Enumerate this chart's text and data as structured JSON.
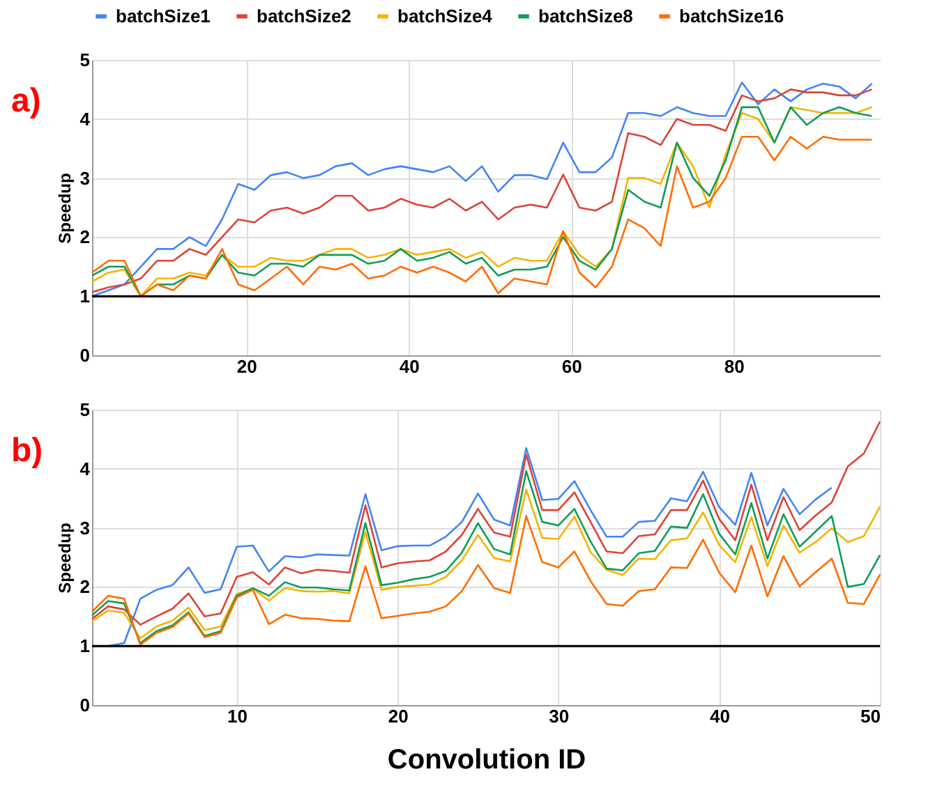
{
  "chart_data": [
    {
      "type": "line",
      "ylabel": "Speedup",
      "annotations": [
        "a)"
      ],
      "legend": "top",
      "grid": true,
      "line_style": "solid",
      "xlim": [
        1,
        98
      ],
      "xticks": [
        20,
        40,
        60,
        80
      ],
      "ylim": [
        0,
        5
      ],
      "yticks": [
        0,
        1,
        2,
        3,
        4,
        5
      ],
      "ref_lines": [
        {
          "axis": "y",
          "value": 1,
          "color": "#000000"
        }
      ],
      "x": [
        1,
        3,
        5,
        7,
        9,
        11,
        13,
        15,
        17,
        19,
        21,
        23,
        25,
        27,
        29,
        31,
        33,
        35,
        37,
        39,
        41,
        43,
        45,
        47,
        49,
        51,
        53,
        55,
        57,
        59,
        61,
        63,
        65,
        67,
        69,
        71,
        73,
        75,
        77,
        79,
        81,
        83,
        85,
        87,
        89,
        91,
        93,
        95,
        97
      ],
      "series": [
        {
          "name": "batchSize1",
          "color": "#4285f4",
          "values": [
            1.0,
            1.1,
            1.2,
            1.5,
            1.8,
            1.8,
            2.0,
            1.85,
            2.3,
            2.9,
            2.8,
            3.05,
            3.1,
            3.0,
            3.05,
            3.2,
            3.25,
            3.05,
            3.15,
            3.2,
            3.15,
            3.1,
            3.2,
            2.95,
            3.2,
            2.77,
            3.05,
            3.05,
            2.98,
            3.6,
            3.1,
            3.1,
            3.35,
            4.1,
            4.1,
            4.05,
            4.2,
            4.1,
            4.05,
            4.05,
            4.62,
            4.25,
            4.5,
            4.3,
            4.5,
            4.6,
            4.55,
            4.35,
            4.6
          ]
        },
        {
          "name": "batchSize2",
          "color": "#db4437",
          "values": [
            1.07,
            1.15,
            1.2,
            1.3,
            1.6,
            1.6,
            1.8,
            1.7,
            2.0,
            2.3,
            2.25,
            2.45,
            2.5,
            2.4,
            2.5,
            2.7,
            2.7,
            2.45,
            2.5,
            2.65,
            2.55,
            2.5,
            2.65,
            2.45,
            2.6,
            2.3,
            2.5,
            2.55,
            2.5,
            3.06,
            2.5,
            2.45,
            2.6,
            3.76,
            3.7,
            3.56,
            4.0,
            3.9,
            3.9,
            3.8,
            4.4,
            4.3,
            4.35,
            4.5,
            4.45,
            4.45,
            4.4,
            4.4,
            4.5
          ]
        },
        {
          "name": "batchSize4",
          "color": "#f4b400",
          "values": [
            1.25,
            1.4,
            1.45,
            1.0,
            1.3,
            1.3,
            1.4,
            1.35,
            1.7,
            1.5,
            1.5,
            1.65,
            1.6,
            1.6,
            1.7,
            1.8,
            1.8,
            1.65,
            1.7,
            1.8,
            1.7,
            1.75,
            1.8,
            1.65,
            1.75,
            1.5,
            1.65,
            1.6,
            1.6,
            2.1,
            1.7,
            1.5,
            1.8,
            3.0,
            3.0,
            2.9,
            3.6,
            3.2,
            2.5,
            3.4,
            4.1,
            4.0,
            3.6,
            4.2,
            4.15,
            4.1,
            4.1,
            4.1,
            4.2
          ]
        },
        {
          "name": "batchSize8",
          "color": "#0f9d58",
          "values": [
            1.35,
            1.5,
            1.5,
            1.0,
            1.2,
            1.2,
            1.35,
            1.3,
            1.7,
            1.4,
            1.35,
            1.55,
            1.55,
            1.5,
            1.7,
            1.7,
            1.7,
            1.55,
            1.6,
            1.8,
            1.6,
            1.65,
            1.75,
            1.55,
            1.65,
            1.35,
            1.45,
            1.45,
            1.5,
            2.0,
            1.6,
            1.45,
            1.8,
            2.8,
            2.6,
            2.5,
            3.6,
            3.0,
            2.7,
            3.3,
            4.2,
            4.2,
            3.6,
            4.2,
            3.9,
            4.1,
            4.2,
            4.1,
            4.05
          ]
        },
        {
          "name": "batchSize16",
          "color": "#ff6d01",
          "values": [
            1.4,
            1.6,
            1.6,
            1.0,
            1.2,
            1.1,
            1.35,
            1.3,
            1.8,
            1.2,
            1.1,
            1.3,
            1.5,
            1.2,
            1.5,
            1.45,
            1.55,
            1.3,
            1.35,
            1.5,
            1.4,
            1.5,
            1.4,
            1.25,
            1.5,
            1.05,
            1.3,
            1.25,
            1.2,
            2.1,
            1.4,
            1.15,
            1.5,
            2.3,
            2.15,
            1.85,
            3.2,
            2.5,
            2.6,
            3.0,
            3.7,
            3.7,
            3.3,
            3.7,
            3.5,
            3.7,
            3.65,
            3.65,
            3.65
          ]
        }
      ]
    },
    {
      "type": "line",
      "xlabel": "Convolution ID",
      "ylabel": "Speedup",
      "annotations": [
        "b)"
      ],
      "grid": true,
      "line_style": "solid",
      "xlim": [
        1,
        50
      ],
      "xticks": [
        10,
        20,
        30,
        40,
        50
      ],
      "ylim": [
        0,
        5
      ],
      "yticks": [
        0,
        1,
        2,
        3,
        4,
        5
      ],
      "ref_lines": [
        {
          "axis": "y",
          "value": 1,
          "color": "#000000"
        }
      ],
      "x": [
        1,
        2,
        3,
        4,
        5,
        6,
        7,
        8,
        9,
        10,
        11,
        12,
        13,
        14,
        15,
        16,
        17,
        18,
        19,
        20,
        21,
        22,
        23,
        24,
        25,
        26,
        27,
        28,
        29,
        30,
        31,
        32,
        33,
        34,
        35,
        36,
        37,
        38,
        39,
        40,
        41,
        42,
        43,
        44,
        45,
        46,
        47,
        48,
        49,
        50
      ],
      "series": [
        {
          "name": "batchSize1",
          "color": "#4285f4",
          "values": [
            1.0,
            1.0,
            1.05,
            1.8,
            1.95,
            2.03,
            2.33,
            1.9,
            1.96,
            2.68,
            2.7,
            2.26,
            2.52,
            2.5,
            2.55,
            2.54,
            2.53,
            3.57,
            2.62,
            2.69,
            2.7,
            2.7,
            2.85,
            3.1,
            3.58,
            3.14,
            3.04,
            4.35,
            3.47,
            3.49,
            3.79,
            3.3,
            2.85,
            2.85,
            3.1,
            3.12,
            3.5,
            3.45,
            3.95,
            3.35,
            3.05,
            3.93,
            3.04,
            3.66,
            3.23,
            3.48,
            3.68,
            null,
            null,
            null
          ]
        },
        {
          "name": "batchSize2",
          "color": "#db4437",
          "values": [
            1.46,
            1.67,
            1.62,
            1.36,
            1.5,
            1.63,
            1.89,
            1.5,
            1.55,
            2.17,
            2.25,
            2.04,
            2.33,
            2.23,
            2.29,
            2.27,
            2.24,
            3.38,
            2.33,
            2.4,
            2.43,
            2.45,
            2.6,
            2.88,
            3.32,
            2.92,
            2.85,
            4.24,
            3.3,
            3.3,
            3.6,
            3.1,
            2.6,
            2.57,
            2.86,
            2.89,
            3.3,
            3.3,
            3.8,
            3.15,
            2.79,
            3.73,
            2.79,
            3.52,
            2.96,
            3.21,
            3.43,
            4.04,
            4.26,
            4.8
          ]
        },
        {
          "name": "batchSize4",
          "color": "#f4b400",
          "values": [
            1.42,
            1.6,
            1.56,
            1.13,
            1.33,
            1.43,
            1.65,
            1.27,
            1.33,
            1.88,
            1.97,
            1.77,
            1.98,
            1.93,
            1.92,
            1.93,
            1.89,
            2.93,
            1.95,
            2.0,
            2.02,
            2.04,
            2.17,
            2.45,
            2.88,
            2.49,
            2.43,
            3.65,
            2.83,
            2.81,
            3.19,
            2.59,
            2.29,
            2.2,
            2.48,
            2.47,
            2.79,
            2.82,
            3.26,
            2.71,
            2.42,
            3.18,
            2.35,
            3.04,
            2.58,
            2.76,
            2.99,
            2.76,
            2.86,
            3.36
          ]
        },
        {
          "name": "batchSize8",
          "color": "#0f9d58",
          "values": [
            1.52,
            1.76,
            1.72,
            1.05,
            1.25,
            1.35,
            1.57,
            1.17,
            1.25,
            1.85,
            1.98,
            1.85,
            2.08,
            1.99,
            1.99,
            1.96,
            1.94,
            3.08,
            2.03,
            2.07,
            2.13,
            2.17,
            2.27,
            2.58,
            3.08,
            2.64,
            2.55,
            3.96,
            3.1,
            3.04,
            3.32,
            2.77,
            2.31,
            2.28,
            2.57,
            2.61,
            3.02,
            3.0,
            3.57,
            2.9,
            2.55,
            3.42,
            2.48,
            3.23,
            2.68,
            2.94,
            3.2,
            2.0,
            2.05,
            2.54
          ]
        },
        {
          "name": "batchSize16",
          "color": "#ff6d01",
          "values": [
            1.58,
            1.85,
            1.8,
            1.02,
            1.22,
            1.32,
            1.55,
            1.15,
            1.22,
            1.82,
            1.95,
            1.37,
            1.53,
            1.47,
            1.46,
            1.43,
            1.42,
            2.35,
            1.47,
            1.51,
            1.55,
            1.58,
            1.67,
            1.93,
            2.37,
            1.98,
            1.9,
            3.2,
            2.42,
            2.33,
            2.6,
            2.1,
            1.71,
            1.68,
            1.93,
            1.96,
            2.33,
            2.32,
            2.8,
            2.24,
            1.91,
            2.7,
            1.84,
            2.52,
            2.01,
            2.25,
            2.48,
            1.73,
            1.71,
            2.21
          ]
        }
      ]
    }
  ]
}
